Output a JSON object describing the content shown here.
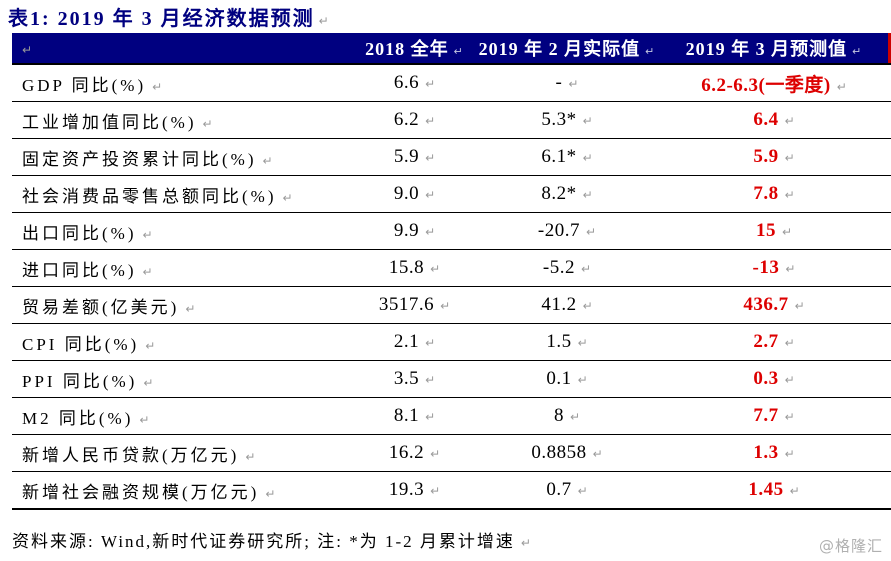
{
  "title": "表1:  2019 年 3 月经济数据预测",
  "marks": {
    "pilcrow": "↵"
  },
  "colors": {
    "title_navy": "#000080",
    "header_bg": "#000080",
    "header_text": "#ffffff",
    "forecast_red": "#dd0000",
    "body_text": "#000000",
    "rule_line": "#000000",
    "header_right_edge_red": "#cc0000",
    "watermark_gray": "#b0b0b0"
  },
  "table": {
    "columns": [
      "2018 全年",
      "2019 年 2 月实际值",
      "2019 年 3 月预测值"
    ],
    "rows": [
      {
        "label": "GDP 同比(%)",
        "values": [
          "6.6",
          "-",
          "6.2-6.3(一季度)"
        ]
      },
      {
        "label": "工业增加值同比(%)",
        "values": [
          "6.2",
          "5.3*",
          "6.4"
        ]
      },
      {
        "label": "固定资产投资累计同比(%)",
        "values": [
          "5.9",
          "6.1*",
          "5.9"
        ]
      },
      {
        "label": "社会消费品零售总额同比(%)",
        "values": [
          "9.0",
          "8.2*",
          "7.8"
        ]
      },
      {
        "label": "出口同比(%)",
        "values": [
          "9.9",
          "-20.7",
          "15"
        ]
      },
      {
        "label": "进口同比(%)",
        "values": [
          "15.8",
          "-5.2",
          "-13"
        ]
      },
      {
        "label": "贸易差额(亿美元)",
        "values": [
          "3517.6",
          "41.2",
          "436.7"
        ]
      },
      {
        "label": "CPI 同比(%)",
        "values": [
          "2.1",
          "1.5",
          "2.7"
        ]
      },
      {
        "label": "PPI 同比(%)",
        "values": [
          "3.5",
          "0.1",
          "0.3"
        ]
      },
      {
        "label": "M2 同比(%)",
        "values": [
          "8.1",
          "8",
          "7.7"
        ]
      },
      {
        "label": "新增人民币贷款(万亿元)",
        "values": [
          "16.2",
          "0.8858",
          "1.3"
        ]
      },
      {
        "label": "新增社会融资规模(万亿元)",
        "values": [
          "19.3",
          "0.7",
          "1.45"
        ]
      }
    ]
  },
  "footer": {
    "source_note": "资料来源: Wind,新时代证券研究所; 注: *为 1-2 月累计增速"
  },
  "watermark": "@格隆汇"
}
